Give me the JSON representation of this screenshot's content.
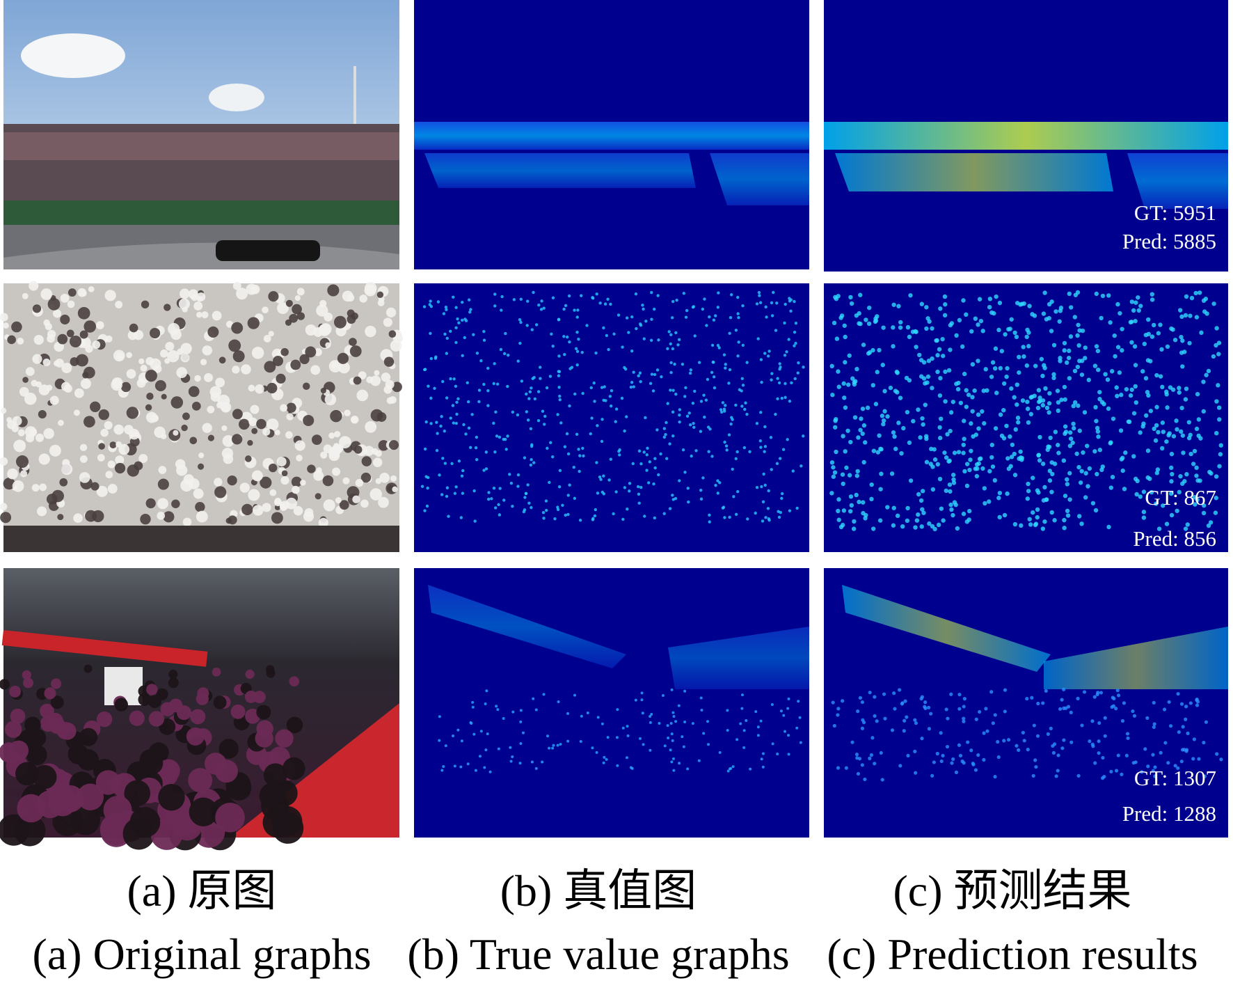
{
  "rows": [
    {
      "gt": "GT: 5951",
      "pred": "Pred: 5885"
    },
    {
      "gt": "GT: 867",
      "pred": "Pred: 856"
    },
    {
      "gt": "GT: 1307",
      "pred": "Pred: 1288"
    }
  ],
  "captions": [
    {
      "zh": "(a) 原图",
      "en": "(a) Original graphs"
    },
    {
      "zh": "(b) 真值图",
      "en": "(b) True value graphs"
    },
    {
      "zh": "(c) 预测结果",
      "en": "(c) Prediction results"
    }
  ]
}
